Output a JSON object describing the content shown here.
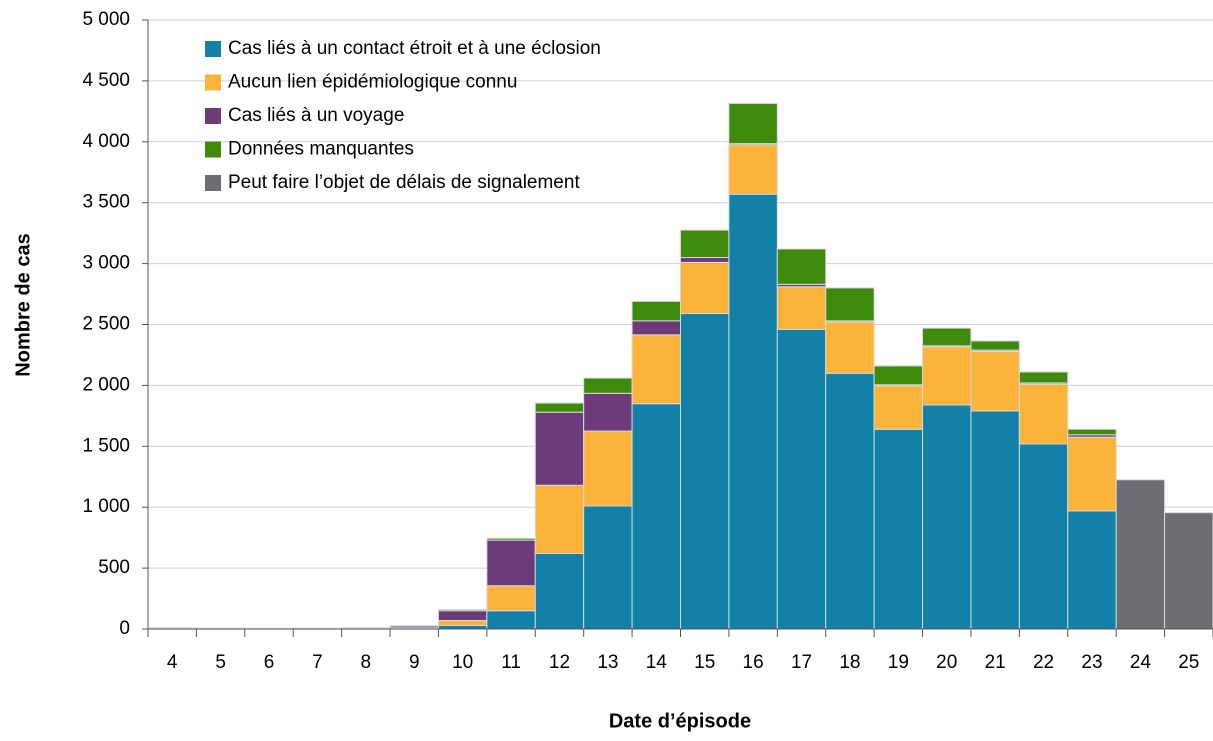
{
  "chart_data": {
    "type": "stacked_bar",
    "x_label": "Date d’épisode",
    "y_label": "Nombre de cas",
    "categories": [
      "4",
      "5",
      "6",
      "7",
      "8",
      "9",
      "10",
      "11",
      "12",
      "13",
      "14",
      "15",
      "16",
      "17",
      "18",
      "19",
      "20",
      "21",
      "22",
      "23",
      "24",
      "25"
    ],
    "series": [
      {
        "name": "Cas liés à un contact étroit et à une éclosion",
        "color": "#1380a8",
        "values": [
          5,
          5,
          3,
          3,
          5,
          5,
          30,
          150,
          620,
          1010,
          1850,
          2590,
          3570,
          2460,
          2100,
          1640,
          1840,
          1790,
          1520,
          970,
          0,
          0
        ]
      },
      {
        "name": "Aucun lien épidémiologique connu",
        "color": "#fbb33a",
        "values": [
          3,
          2,
          2,
          2,
          3,
          5,
          40,
          205,
          560,
          615,
          565,
          420,
          405,
          350,
          420,
          355,
          475,
          490,
          490,
          605,
          0,
          0
        ]
      },
      {
        "name": "Cas liés à un voyage",
        "color": "#6d3b7a",
        "values": [
          2,
          0,
          0,
          2,
          2,
          15,
          80,
          375,
          600,
          310,
          115,
          40,
          10,
          20,
          10,
          10,
          10,
          10,
          10,
          20,
          0,
          0
        ]
      },
      {
        "name": "Données manquantes",
        "color": "#3e8a0b",
        "values": [
          0,
          0,
          0,
          0,
          0,
          2,
          10,
          15,
          75,
          125,
          160,
          225,
          330,
          290,
          270,
          155,
          145,
          75,
          90,
          45,
          0,
          0
        ]
      },
      {
        "name": "Peut faire l’objet de délais de signalement",
        "color": "#6d6e71",
        "values": [
          0,
          0,
          0,
          0,
          0,
          0,
          0,
          0,
          0,
          0,
          0,
          0,
          0,
          0,
          0,
          0,
          0,
          0,
          0,
          0,
          1225,
          955
        ]
      }
    ],
    "ylim": [
      0,
      5000
    ],
    "yticks": [
      0,
      500,
      {
        "value": 1000,
        "label": "1 000"
      },
      {
        "value": 1500,
        "label": "1 500"
      },
      {
        "value": 2000,
        "label": "2 000"
      },
      {
        "value": 2500,
        "label": "2 500"
      },
      {
        "value": 3000,
        "label": "3 000"
      },
      {
        "value": 3500,
        "label": "3 500"
      },
      {
        "value": 4000,
        "label": "4 000"
      },
      {
        "value": 4500,
        "label": "4 500"
      },
      {
        "value": 5000,
        "label": "5 000"
      }
    ],
    "grid": true,
    "legend": "top-left"
  }
}
